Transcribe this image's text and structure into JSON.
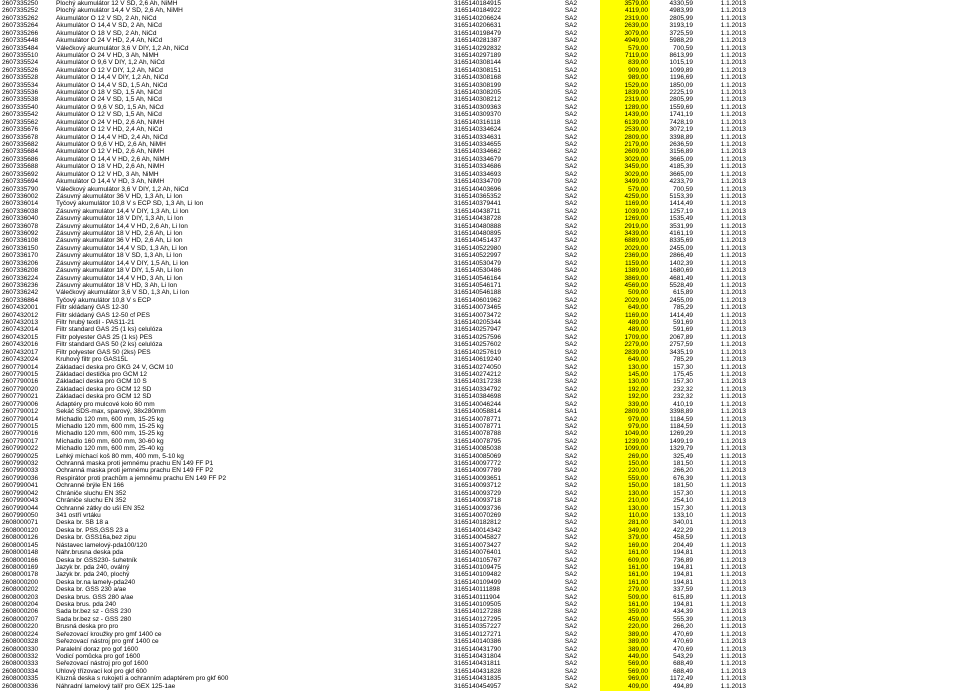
{
  "rows": [
    [
      "2607335250",
      "Plochý akumulátor 12 V SD, 2,6 Ah, NiMH",
      "3165140184915",
      "SA2",
      "3579,00",
      "4330,59",
      "1.1.2013",
      true
    ],
    [
      "2607335252",
      "Plochý akumulátor 14,4 V SD, 2,6 Ah, NiMH",
      "3165140184922",
      "SA2",
      "4119,00",
      "4983,99",
      "1.1.2013",
      true
    ],
    [
      "2607335262",
      "Akumulátor O 12 V SD, 2 Ah, NiCd",
      "3165140206624",
      "SA2",
      "2319,00",
      "2805,99",
      "1.1.2013",
      true
    ],
    [
      "2607335264",
      "Akumulátor O 14,4 V SD, 2 Ah, NiCd",
      "3165140206631",
      "SA2",
      "2639,00",
      "3193,19",
      "1.1.2013",
      true
    ],
    [
      "2607335266",
      "Akumulátor O 18 V SD, 2 Ah, NiCd",
      "3165140198479",
      "SA2",
      "3079,00",
      "3725,59",
      "1.1.2013",
      true
    ],
    [
      "2607335448",
      "Akumulátor O 24 V HD, 2,4 Ah, NiCd",
      "3165140281387",
      "SA2",
      "4949,00",
      "5988,29",
      "1.1.2013",
      true
    ],
    [
      "2607335484",
      "Válečkový akumulátor 3,6 V DIY, 1,2 Ah, NiCd",
      "3165140292832",
      "SA2",
      "579,00",
      "700,59",
      "1.1.2013",
      true
    ],
    [
      "2607335510",
      "Akumulátor O 24 V HD, 3 Ah, NiMH",
      "3165140297189",
      "SA2",
      "7119,00",
      "8613,99",
      "1.1.2013",
      true
    ],
    [
      "2607335524",
      "Akumulátor O 9,6 V DIY, 1,2 Ah, NiCd",
      "3165140308144",
      "SA2",
      "839,00",
      "1015,19",
      "1.1.2013",
      true
    ],
    [
      "2607335526",
      "Akumulátor O 12 V DIY, 1,2 Ah, NiCd",
      "3165140308151",
      "SA2",
      "909,00",
      "1099,89",
      "1.1.2013",
      true
    ],
    [
      "2607335528",
      "Akumulátor O 14,4 V DIY, 1,2 Ah, NiCd",
      "3165140308168",
      "SA2",
      "989,00",
      "1196,69",
      "1.1.2013",
      true
    ],
    [
      "2607335534",
      "Akumulátor O 14,4 V SD, 1,5 Ah, NiCd",
      "3165140308199",
      "SA2",
      "1529,00",
      "1850,09",
      "1.1.2013",
      true
    ],
    [
      "2607335536",
      "Akumulátor O 18 V SD, 1,5 Ah, NiCd",
      "3165140308205",
      "SA2",
      "1839,00",
      "2225,19",
      "1.1.2013",
      true
    ],
    [
      "2607335538",
      "Akumulátor O 24 V SD, 1,5 Ah, NiCd",
      "3165140308212",
      "SA2",
      "2319,00",
      "2805,99",
      "1.1.2013",
      true
    ],
    [
      "2607335540",
      "Akumulátor O 9,6 V SD, 1,5 Ah, NiCd",
      "3165140309363",
      "SA2",
      "1289,00",
      "1559,69",
      "1.1.2013",
      true
    ],
    [
      "2607335542",
      "Akumulátor O 12 V SD, 1,5 Ah, NiCd",
      "3165140309370",
      "SA2",
      "1439,00",
      "1741,19",
      "1.1.2013",
      true
    ],
    [
      "2607335562",
      "Akumulátor O 24 V HD, 2,6 Ah, NiMH",
      "3165140316118",
      "SA2",
      "6139,00",
      "7428,19",
      "1.1.2013",
      true
    ],
    [
      "2607335676",
      "Akumulátor O 12 V HD, 2,4 Ah, NiCd",
      "3165140334624",
      "SA2",
      "2539,00",
      "3072,19",
      "1.1.2013",
      true
    ],
    [
      "2607335678",
      "Akumulátor O 14,4 V HD, 2,4 Ah, NiCd",
      "3165140334631",
      "SA2",
      "2809,00",
      "3398,89",
      "1.1.2013",
      true
    ],
    [
      "2607335682",
      "Akumulátor O 9,6 V HD, 2,6 Ah, NiMH",
      "3165140334655",
      "SA2",
      "2179,00",
      "2636,59",
      "1.1.2013",
      true
    ],
    [
      "2607335684",
      "Akumulátor O 12 V HD, 2,6 Ah, NiMH",
      "3165140334662",
      "SA2",
      "2609,00",
      "3156,89",
      "1.1.2013",
      true
    ],
    [
      "2607335686",
      "Akumulátor O 14,4 V HD, 2,6 Ah, NiMH",
      "3165140334679",
      "SA2",
      "3029,00",
      "3665,09",
      "1.1.2013",
      true
    ],
    [
      "2607335688",
      "Akumulátor O 18 V HD, 2,6 Ah, NiMH",
      "3165140334686",
      "SA2",
      "3459,00",
      "4185,39",
      "1.1.2013",
      true
    ],
    [
      "2607335692",
      "Akumulátor O 12 V HD, 3 Ah, NiMH",
      "3165140334693",
      "SA2",
      "3029,00",
      "3665,09",
      "1.1.2013",
      true
    ],
    [
      "2607335694",
      "Akumulátor O 14,4 V HD, 3 Ah, NiMH",
      "3165140334709",
      "SA2",
      "3499,00",
      "4233,79",
      "1.1.2013",
      true
    ],
    [
      "2607335790",
      "Válečkový akumulátor 3,6 V DIY, 1,2 Ah, NiCd",
      "3165140403696",
      "SA2",
      "579,00",
      "700,59",
      "1.1.2013",
      true
    ],
    [
      "2607336002",
      "Zásuvný akumulátor 36 V HD, 1,3 Ah, Li Ion",
      "3165140365352",
      "SA2",
      "4259,00",
      "5153,39",
      "1.1.2013",
      true
    ],
    [
      "2607336014",
      "Tyčový akumulátor 10,8 V s ECP SD, 1,3 Ah, Li Ion",
      "3165140379441",
      "SA2",
      "1169,00",
      "1414,49",
      "1.1.2013",
      true
    ],
    [
      "2607336038",
      "Zásuvný akumulátor 14,4 V DIY, 1,3 Ah, Li Ion",
      "3165140438711",
      "SA2",
      "1039,00",
      "1257,19",
      "1.1.2013",
      true
    ],
    [
      "2607336040",
      "Zásuvný akumulátor 18 V DIY, 1,3 Ah, Li Ion",
      "3165140438728",
      "SA2",
      "1269,00",
      "1535,49",
      "1.1.2013",
      true
    ],
    [
      "2607336078",
      "Zásuvný akumulátor 14,4 V HD, 2,6 Ah, Li Ion",
      "3165140480888",
      "SA2",
      "2919,00",
      "3531,99",
      "1.1.2013",
      true
    ],
    [
      "2607336092",
      "Zásuvný akumulátor 18 V HD, 2,6 Ah, Li Ion",
      "3165140480895",
      "SA2",
      "3439,00",
      "4161,19",
      "1.1.2013",
      true
    ],
    [
      "2607336108",
      "Zásuvný akumulátor 36 V HD, 2,6 Ah, Li Ion",
      "3165140451437",
      "SA2",
      "6889,00",
      "8335,69",
      "1.1.2013",
      true
    ],
    [
      "2607336150",
      "Zásuvný akumulátor 14,4 V SD, 1,3 Ah, Li Ion",
      "3165140522980",
      "SA2",
      "2029,00",
      "2455,09",
      "1.1.2013",
      true
    ],
    [
      "2607336170",
      "Zásuvný akumulátor 18 V SD, 1,3 Ah, Li Ion",
      "3165140522997",
      "SA2",
      "2369,00",
      "2866,49",
      "1.1.2013",
      true
    ],
    [
      "2607336206",
      "Zásuvný akumulátor 14,4 V DIY, 1,5 Ah, Li Ion",
      "3165140530479",
      "SA2",
      "1159,00",
      "1402,39",
      "1.1.2013",
      true
    ],
    [
      "2607336208",
      "Zásuvný akumulátor 18 V DIY, 1,5 Ah, Li Ion",
      "3165140530486",
      "SA2",
      "1389,00",
      "1680,69",
      "1.1.2013",
      true
    ],
    [
      "2607336224",
      "Zásuvný akumulátor 14,4 V HD, 3 Ah, Li Ion",
      "3165140546164",
      "SA2",
      "3869,00",
      "4681,49",
      "1.1.2013",
      true
    ],
    [
      "2607336236",
      "Zásuvný akumulátor 18 V HD, 3 Ah, Li Ion",
      "3165140546171",
      "SA2",
      "4569,00",
      "5528,49",
      "1.1.2013",
      true
    ],
    [
      "2607336242",
      "Válečkový akumulátor 3,6 V SD, 1,3 Ah, Li Ion",
      "3165140546188",
      "SA2",
      "509,00",
      "615,89",
      "1.1.2013",
      true
    ],
    [
      "2607336864",
      "Tyčový akumulátor 10,8 V s ECP",
      "3165140601962",
      "SA2",
      "2029,00",
      "2455,09",
      "1.1.2013",
      true
    ],
    [
      "2607432001",
      "Filtr skládaný GAS 12-30",
      "3165140073465",
      "SA2",
      "649,00",
      "785,29",
      "1.1.2013",
      true
    ],
    [
      "2607432012",
      "Filtr skládaný GAS 12-50 cf PES",
      "3165140073472",
      "SA2",
      "1169,00",
      "1414,49",
      "1.1.2013",
      true
    ],
    [
      "2607432013",
      "Filtr hrubý textil - PAS11-21",
      "3165140205344",
      "SA2",
      "489,00",
      "591,69",
      "1.1.2013",
      true
    ],
    [
      "2607432014",
      "Filtr standard GAS 25 (1 ks) celulóza",
      "3165140257947",
      "SA2",
      "489,00",
      "591,69",
      "1.1.2013",
      true
    ],
    [
      "2607432015",
      "Filtr polyester GAS 25 (1 ks) PES",
      "3165140257596",
      "SA2",
      "1709,00",
      "2067,89",
      "1.1.2013",
      true
    ],
    [
      "2607432016",
      "Filtr standard GAS 50 (2 ks) celulóza",
      "3165140257602",
      "SA2",
      "2279,00",
      "2757,59",
      "1.1.2013",
      true
    ],
    [
      "2607432017",
      "Filtr polyester GAS 50 (2ks) PES",
      "3165140257619",
      "SA2",
      "2839,00",
      "3435,19",
      "1.1.2013",
      true
    ],
    [
      "2607432024",
      "Kruhový filtr pro GAS15L",
      "3165140619240",
      "SA2",
      "649,00",
      "785,29",
      "1.1.2013",
      true
    ],
    [
      "2607790014",
      "Základací deska pro GKG 24 V, GCM 10",
      "3165140274050",
      "SA2",
      "130,00",
      "157,30",
      "1.1.2013",
      true
    ],
    [
      "2607790015",
      "Základací destička pro GCM 12",
      "3165140274212",
      "SA2",
      "145,00",
      "175,45",
      "1.1.2013",
      true
    ],
    [
      "2607790016",
      "Základací deska pro GCM 10 S",
      "3165140317238",
      "SA2",
      "130,00",
      "157,30",
      "1.1.2013",
      true
    ],
    [
      "2607790020",
      "Základací deska pro GCM 12 SD",
      "3165140334792",
      "SA2",
      "192,00",
      "232,32",
      "1.1.2013",
      true
    ],
    [
      "2607790021",
      "Základací deska pro GCM 12 SD",
      "3165140384698",
      "SA2",
      "192,00",
      "232,32",
      "1.1.2013",
      true
    ],
    [
      "2607790006",
      "Adaptéry pro mulcové kolo 60 mm",
      "3165140046244",
      "SA2",
      "339,00",
      "410,19",
      "1.1.2013",
      true
    ],
    [
      "2607790012",
      "Sekáč SDS-max, sparový, 38x280mm",
      "3165140058814",
      "SA1",
      "2809,00",
      "3398,89",
      "1.1.2013",
      true
    ],
    [
      "2607790014",
      "Míchadlo 120 mm, 600 mm, 15-25 kg",
      "3165140078771",
      "SA2",
      "979,00",
      "1184,59",
      "1.1.2013",
      true
    ],
    [
      "2607790015",
      "Míchadlo 120 mm, 600 mm, 15-25 kg",
      "3165140078771",
      "SA2",
      "979,00",
      "1184,59",
      "1.1.2013",
      true
    ],
    [
      "2607790016",
      "Míchadlo 120 mm, 600 mm, 15-25 kg",
      "3165140078788",
      "SA2",
      "1049,00",
      "1269,29",
      "1.1.2013",
      true
    ],
    [
      "2607790017",
      "Míchadlo 160 mm, 600 mm, 30-60 kg",
      "3165140078795",
      "SA2",
      "1239,00",
      "1499,19",
      "1.1.2013",
      true
    ],
    [
      "2607990022",
      "Míchadlo 120 mm, 600 mm, 25-40 kg",
      "3165140085038",
      "SA2",
      "1099,00",
      "1329,79",
      "1.1.2013",
      true
    ],
    [
      "2607990025",
      "Lehký míchací koš 80 mm, 400 mm, 5-10 kg",
      "3165140085069",
      "SA2",
      "269,00",
      "325,49",
      "1.1.2013",
      true
    ],
    [
      "2607990032",
      "Ochranná maska proti jemnému prachu EN 149 FF P1",
      "3165140097772",
      "SA2",
      "150,00",
      "181,50",
      "1.1.2013",
      true
    ],
    [
      "2607990033",
      "Ochranná maska proti jemnému prachu EN 149 FF P2",
      "3165140097789",
      "SA2",
      "220,00",
      "266,20",
      "1.1.2013",
      true
    ],
    [
      "2607990036",
      "Respirátor proti prachům a jemnému prachu EN 149 FF P2",
      "3165140093651",
      "SA2",
      "559,00",
      "676,39",
      "1.1.2013",
      true
    ],
    [
      "2607990041",
      "Ochranné brýle EN 166",
      "3165140093712",
      "SA2",
      "150,00",
      "181,50",
      "1.1.2013",
      true
    ],
    [
      "2607990042",
      "Chrániče sluchu EN 352",
      "3165140093729",
      "SA2",
      "130,00",
      "157,30",
      "1.1.2013",
      true
    ],
    [
      "2607990043",
      "Chrániče sluchu EN 352",
      "3165140093718",
      "SA2",
      "210,00",
      "254,10",
      "1.1.2013",
      true
    ],
    [
      "2607990044",
      "Ochranné zátky do uší EN 352",
      "3165140093736",
      "SA2",
      "130,00",
      "157,30",
      "1.1.2013",
      true
    ],
    [
      "2607990050",
      "341 ostří vrtáku",
      "3165140070269",
      "SA2",
      "110,00",
      "133,10",
      "1.1.2013",
      true
    ],
    [
      "2608000071",
      "Deska br. SB 18 a",
      "3165140182812",
      "SA2",
      "281,00",
      "340,01",
      "1.1.2013",
      true
    ],
    [
      "2608000120",
      "Deska br. PSS,GSS 23 a",
      "3165140014342",
      "SA2",
      "349,00",
      "422,29",
      "1.1.2013",
      true
    ],
    [
      "2608000126",
      "Deska br. GSS16a,bez zipu",
      "3165140045827",
      "SA2",
      "379,00",
      "458,59",
      "1.1.2013",
      true
    ],
    [
      "2608000145",
      "Nástavec lamelový-pda100/120",
      "3165140073427",
      "SA2",
      "169,00",
      "204,49",
      "1.1.2013",
      true
    ],
    [
      "2608000148",
      "Náhr.brusna deska pda",
      "3165140076401",
      "SA2",
      "161,00",
      "194,81",
      "1.1.2013",
      true
    ],
    [
      "2608000166",
      "Deska br GSS230- šuhetník",
      "3165140105767",
      "SA2",
      "609,00",
      "736,89",
      "1.1.2013",
      true
    ],
    [
      "2608000169",
      "Jazyk br. pda 240, oválný",
      "3165140109475",
      "SA2",
      "161,00",
      "194,81",
      "1.1.2013",
      true
    ],
    [
      "2608000178",
      "Jazyk br. pda 240, plochý",
      "3165140109482",
      "SA2",
      "161,00",
      "194,81",
      "1.1.2013",
      true
    ],
    [
      "2608000200",
      "Deska br.na lamely-pda240",
      "3165140109499",
      "SA2",
      "161,00",
      "194,81",
      "1.1.2013",
      true
    ],
    [
      "2608000202",
      "Deska br. GSS 230 a/ae",
      "3165140111898",
      "SA2",
      "279,00",
      "337,59",
      "1.1.2013",
      true
    ],
    [
      "2608000203",
      "Deska brus. GSS 280 a/ae",
      "3165140111904",
      "SA2",
      "509,00",
      "615,89",
      "1.1.2013",
      true
    ],
    [
      "2608000204",
      "Deska brus. pda 240",
      "3165140109505",
      "SA2",
      "161,00",
      "194,81",
      "1.1.2013",
      true
    ],
    [
      "2608000206",
      "Sada br.bez sz - GSS 230",
      "3165140127288",
      "SA2",
      "359,00",
      "434,39",
      "1.1.2013",
      true
    ],
    [
      "2608000207",
      "Sada br.bez sz - GSS 280",
      "3165140127295",
      "SA2",
      "459,00",
      "555,39",
      "1.1.2013",
      true
    ],
    [
      "2608000220",
      "Brusná deska pro pro",
      "3165140357227",
      "SA2",
      "220,00",
      "266,20",
      "1.1.2013",
      true
    ],
    [
      "2608000224",
      "Seřezovací kroužky pro gmf 1400 ce",
      "3165140127271",
      "SA2",
      "389,00",
      "470,69",
      "1.1.2013",
      true
    ],
    [
      "2608000328",
      "Seřezovací nástroj pro gmf 1400 ce",
      "3165140140386",
      "SA2",
      "389,00",
      "470,69",
      "1.1.2013",
      true
    ],
    [
      "2608000330",
      "Paralelní doraz pro gof 1600",
      "3165140431790",
      "SA2",
      "389,00",
      "470,69",
      "1.1.2013",
      true
    ],
    [
      "2608000332",
      "Vodicí pomůcka pro gof 1600",
      "3165140431804",
      "SA2",
      "449,00",
      "543,29",
      "1.1.2013",
      true
    ],
    [
      "2608000333",
      "Seřezovací nástroj pro gof 1600",
      "3165140431811",
      "SA2",
      "569,00",
      "688,49",
      "1.1.2013",
      true
    ],
    [
      "2608000334",
      "Úhlový třízovací kol pro gkf 600",
      "3165140431828",
      "SA2",
      "569,00",
      "688,49",
      "1.1.2013",
      true
    ],
    [
      "2608000335",
      "Kluzná deska s rukojetí a ochranním adaptérem pro gkf 600",
      "3165140431835",
      "SA2",
      "969,00",
      "1172,49",
      "1.1.2013",
      true
    ],
    [
      "2608000336",
      "Náhradní lamelový talíř pro GEX 125-1ae",
      "3165140454957",
      "SA2",
      "409,00",
      "494,89",
      "1.1.2013",
      true
    ]
  ]
}
